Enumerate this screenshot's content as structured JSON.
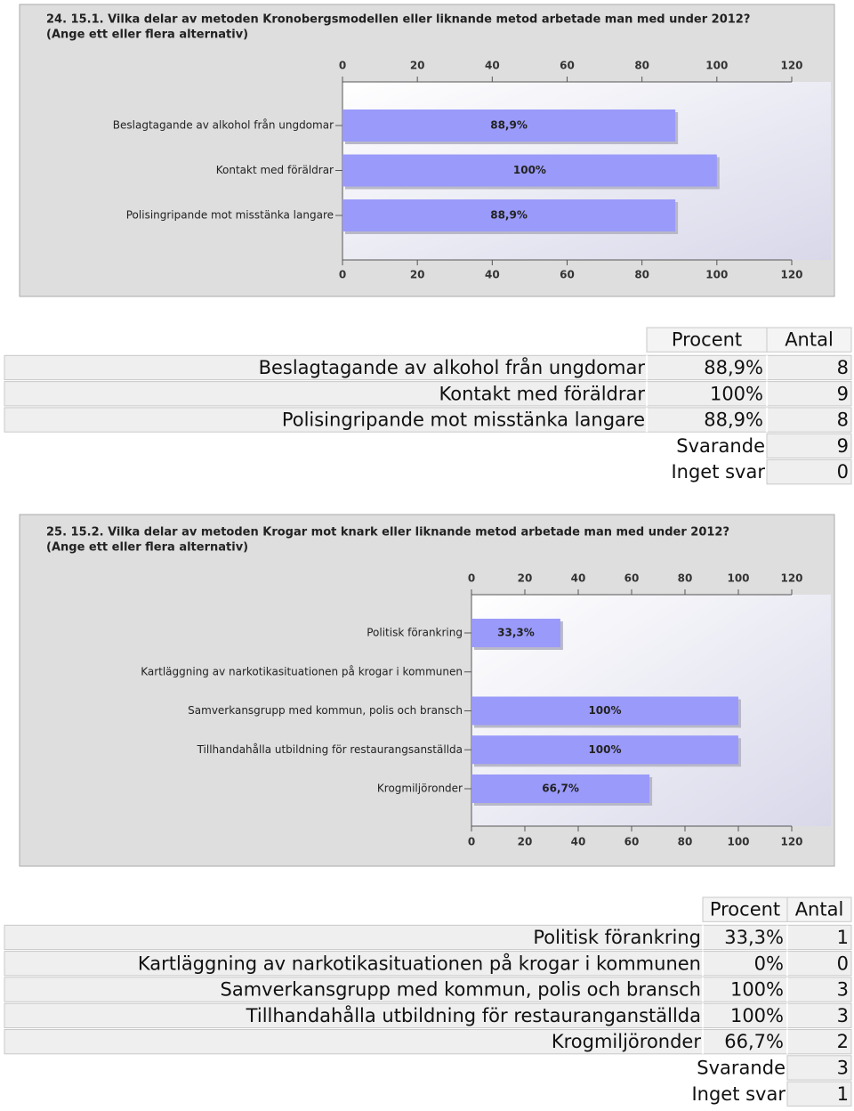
{
  "chart_data": [
    {
      "type": "bar",
      "orientation": "horizontal",
      "title": "24. 15.1. Vilka delar av metoden Kronobergsmodellen eller liknande metod arbetade man med under 2012?",
      "subtitle": "(Ange ett eller flera alternativ)",
      "categories": [
        "Beslagtagande av alkohol från ungdomar",
        "Kontakt med föräldrar",
        "Polisingripande mot misstänka langare"
      ],
      "values": [
        88.9,
        100,
        88.9
      ],
      "value_labels": [
        "88,9%",
        "100%",
        "88,9%"
      ],
      "color": "#9a9afa",
      "xlim": [
        0,
        120
      ],
      "xticks": [
        0,
        20,
        40,
        60,
        80,
        100,
        120
      ]
    },
    {
      "type": "bar",
      "orientation": "horizontal",
      "title": "25. 15.2. Vilka delar av metoden Krogar mot knark eller liknande metod arbetade man med under 2012?",
      "subtitle": "(Ange ett eller flera alternativ)",
      "categories": [
        "Politisk förankring",
        "Kartläggning av narkotikasituationen på krogar i kommunen",
        "Samverkansgrupp med kommun, polis och bransch",
        "Tillhandahålla utbildning för restaurangsanställda",
        "Krogmiljöronder"
      ],
      "values": [
        33.3,
        0,
        100,
        100,
        66.7
      ],
      "value_labels": [
        "33,3%",
        null,
        "100%",
        "100%",
        "66,7%"
      ],
      "color": "#9a9afa",
      "xlim": [
        0,
        120
      ],
      "xticks": [
        0,
        20,
        40,
        60,
        80,
        100,
        120
      ]
    }
  ],
  "tables": [
    {
      "headers": [
        "Procent",
        "Antal"
      ],
      "rows": [
        [
          "Beslagtagande av alkohol från ungdomar",
          "88,9%",
          8
        ],
        [
          "Kontakt med föräldrar",
          "100%",
          9
        ],
        [
          "Polisingripande mot misstänka langare",
          "88,9%",
          8
        ]
      ],
      "summary": [
        [
          "Svarande",
          9
        ],
        [
          "Inget svar",
          0
        ]
      ]
    },
    {
      "headers": [
        "Procent",
        "Antal"
      ],
      "rows": [
        [
          "Politisk förankring",
          "33,3%",
          1
        ],
        [
          "Kartläggning av narkotikasituationen på krogar i kommunen",
          "0%",
          0
        ],
        [
          "Samverkansgrupp med kommun, polis och bransch",
          "100%",
          3
        ],
        [
          "Tillhandahålla utbildning för restauranganställda",
          "100%",
          3
        ],
        [
          "Krogmiljöronder",
          "66,7%",
          2
        ]
      ],
      "summary": [
        [
          "Svarande",
          3
        ],
        [
          "Inget svar",
          1
        ]
      ]
    }
  ]
}
